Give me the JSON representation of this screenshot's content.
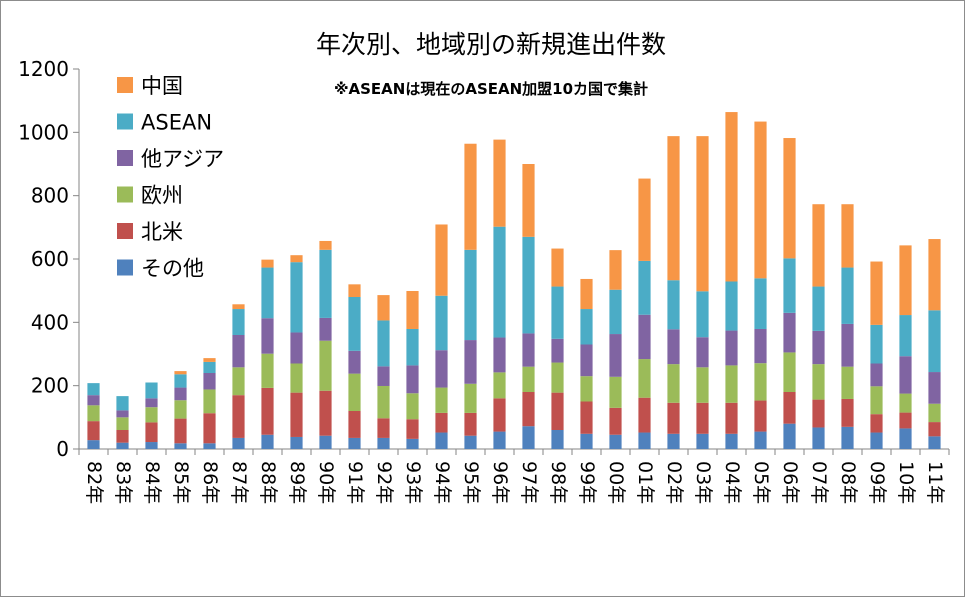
{
  "chart_data": {
    "type": "bar",
    "stacked": true,
    "title": "年次別、地域別の新規進出件数",
    "note": "※ASEANは現在のASEAN加盟10カ国で集計",
    "ylim": [
      0,
      1200
    ],
    "yticks": [
      "0",
      "200",
      "400",
      "600",
      "800",
      "1000",
      "1200"
    ],
    "grid": false,
    "legend_position": "top-left",
    "categories": [
      "82年",
      "83年",
      "84年",
      "85年",
      "86年",
      "87年",
      "88年",
      "89年",
      "90年",
      "91年",
      "92年",
      "93年",
      "94年",
      "95年",
      "96年",
      "97年",
      "98年",
      "99年",
      "00年",
      "01年",
      "02年",
      "03年",
      "04年",
      "05年",
      "06年",
      "07年",
      "08年",
      "09年",
      "10年",
      "11年"
    ],
    "series": [
      {
        "name": "その他",
        "color": "#4f81bd",
        "values": [
          28,
          20,
          22,
          18,
          18,
          35,
          45,
          38,
          42,
          35,
          35,
          32,
          52,
          42,
          55,
          72,
          60,
          48,
          45,
          52,
          48,
          48,
          48,
          55,
          80,
          68,
          70,
          52,
          65,
          40
        ]
      },
      {
        "name": "北米",
        "color": "#c0504d",
        "values": [
          60,
          40,
          62,
          78,
          95,
          135,
          148,
          140,
          142,
          85,
          62,
          62,
          62,
          72,
          105,
          108,
          118,
          102,
          85,
          110,
          98,
          98,
          98,
          98,
          100,
          88,
          88,
          58,
          50,
          45
        ]
      },
      {
        "name": "欧州",
        "color": "#9bbb59",
        "values": [
          50,
          40,
          48,
          58,
          75,
          88,
          108,
          92,
          158,
          118,
          102,
          82,
          80,
          92,
          82,
          80,
          95,
          80,
          98,
          122,
          122,
          112,
          118,
          118,
          125,
          112,
          102,
          88,
          60,
          58
        ]
      },
      {
        "name": "他アジア",
        "color": "#8064a2",
        "values": [
          32,
          22,
          28,
          40,
          52,
          102,
          112,
          98,
          72,
          72,
          62,
          88,
          118,
          138,
          110,
          105,
          75,
          100,
          135,
          140,
          110,
          95,
          110,
          108,
          125,
          105,
          135,
          72,
          118,
          100
        ]
      },
      {
        "name": "ASEAN",
        "color": "#4bacc6",
        "values": [
          38,
          45,
          50,
          42,
          35,
          82,
          160,
          222,
          215,
          170,
          145,
          115,
          172,
          285,
          350,
          305,
          165,
          112,
          140,
          170,
          155,
          145,
          155,
          160,
          172,
          140,
          178,
          122,
          130,
          195
        ]
      },
      {
        "name": "中国",
        "color": "#f79646",
        "values": [
          0,
          0,
          0,
          10,
          12,
          15,
          25,
          22,
          28,
          40,
          80,
          120,
          225,
          335,
          275,
          230,
          120,
          95,
          125,
          260,
          455,
          490,
          535,
          495,
          380,
          260,
          200,
          200,
          220,
          225
        ]
      }
    ],
    "legend_order": [
      "中国",
      "ASEAN",
      "他アジア",
      "欧州",
      "北米",
      "その他"
    ]
  }
}
